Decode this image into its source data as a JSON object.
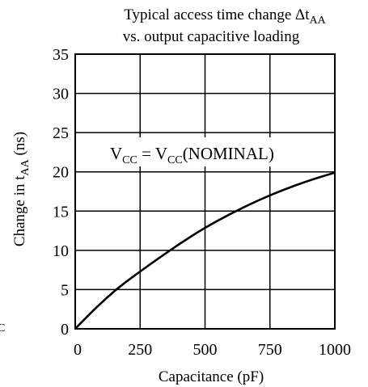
{
  "chart_data": {
    "type": "line",
    "title_line1_main": "Typical access time change Δt",
    "title_line1_sub": "AA",
    "title_line2": "vs. output capacitive loading",
    "xlabel": "Capacitance (pF)",
    "ylabel_main": "Change in t",
    "ylabel_sub": "AA",
    "ylabel_unit": " (ns)",
    "annotation": {
      "part1": "V",
      "sub1": "CC",
      "part2": " = V",
      "sub2": "CC",
      "part3": "(NOMINAL)"
    },
    "xlim": [
      0,
      1000
    ],
    "ylim": [
      0,
      35
    ],
    "xticks": [
      0,
      250,
      500,
      750,
      1000
    ],
    "xtick_labels": [
      "0",
      "250",
      "500",
      "750",
      "1000"
    ],
    "yticks": [
      0,
      5,
      10,
      15,
      20,
      25,
      30,
      35
    ],
    "ytick_labels": [
      "0",
      "5",
      "10",
      "15",
      "20",
      "25",
      "30",
      "35"
    ],
    "grid": true,
    "series": [
      {
        "x": [
          0,
          50,
          100,
          150,
          200,
          250,
          300,
          400,
          500,
          600,
          700,
          800,
          900,
          1000
        ],
        "y": [
          0,
          1.7,
          3.3,
          4.8,
          6.1,
          7.3,
          8.5,
          10.8,
          12.9,
          14.7,
          16.3,
          17.7,
          18.9,
          19.9
        ]
      }
    ],
    "stray_text": "C"
  }
}
